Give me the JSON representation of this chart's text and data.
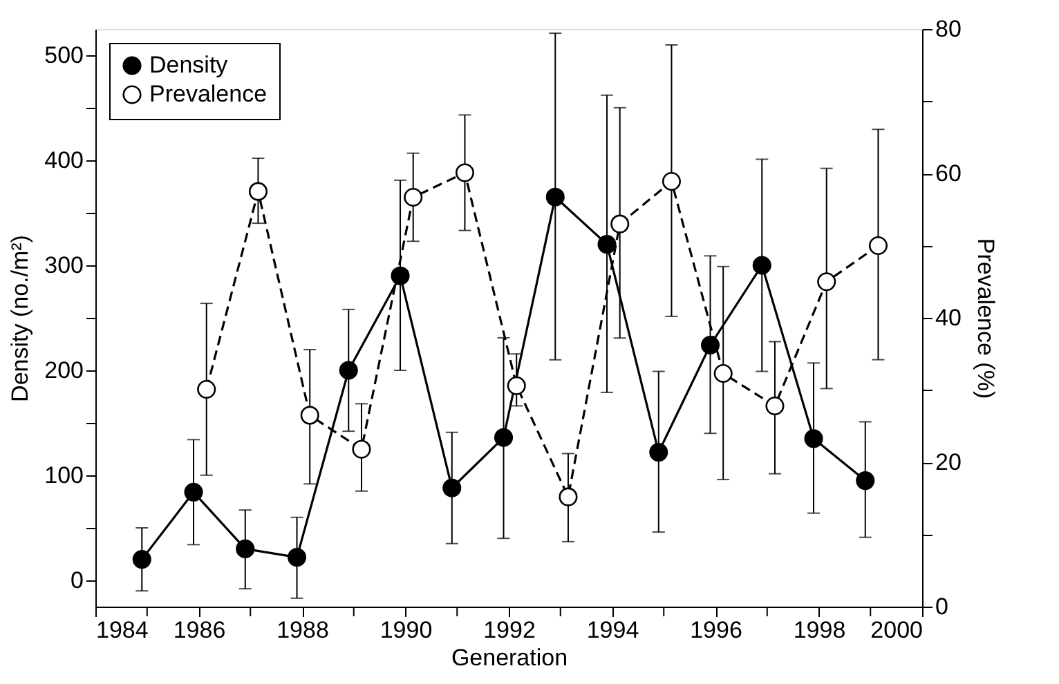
{
  "chart_data": {
    "type": "line",
    "xlabel": "Generation",
    "ylabel": "Density (no./m²)",
    "y2label": "Prevalence (%)",
    "xlim": [
      1984,
      2000
    ],
    "xticks": [
      1984,
      {
        "value": 1985,
        "label": null
      },
      1986,
      {
        "value": 1987,
        "label": null
      },
      1988,
      {
        "value": 1989,
        "label": null
      },
      1990,
      {
        "value": 1991,
        "label": null
      },
      1992,
      {
        "value": 1993,
        "label": null
      },
      1994,
      {
        "value": 1995,
        "label": null
      },
      1996,
      {
        "value": 1997,
        "label": null
      },
      1998,
      {
        "value": 1999,
        "label": null
      },
      2000
    ],
    "ylim": [
      -25,
      525
    ],
    "yticks": [
      0,
      {
        "value": 50,
        "label": null
      },
      100,
      {
        "value": 150,
        "label": null
      },
      200,
      {
        "value": 250,
        "label": null
      },
      300,
      {
        "value": 350,
        "label": null
      },
      400,
      {
        "value": 450,
        "label": null
      },
      500
    ],
    "y2lim": [
      0,
      80
    ],
    "y2ticks": [
      0,
      {
        "value": 10,
        "label": null
      },
      20,
      {
        "value": 30,
        "label": null
      },
      40,
      {
        "value": 50,
        "label": null
      },
      60,
      {
        "value": 70,
        "label": null
      },
      80
    ],
    "grid": false,
    "legend": "top left",
    "marker": "circle",
    "series": [
      {
        "name": "Density",
        "color": "#000000",
        "line_style": "solid",
        "x": [
          1984.9,
          1985.9,
          1986.9,
          1987.9,
          1988.9,
          1989.9,
          1990.9,
          1991.9,
          1992.9,
          1993.9,
          1994.9,
          1995.9,
          1996.9,
          1997.9,
          1998.9
        ],
        "values": [
          20,
          84,
          30,
          22,
          200,
          290,
          88,
          136,
          365,
          320,
          122,
          224,
          300,
          135,
          95
        ],
        "errors": [
          [
            -10,
            50
          ],
          [
            34,
            134
          ],
          [
            -8,
            67
          ],
          [
            -17,
            60
          ],
          [
            142,
            258
          ],
          [
            200,
            381
          ],
          [
            35,
            141
          ],
          [
            40,
            231
          ],
          [
            210,
            521
          ],
          [
            179,
            462
          ],
          [
            46,
            199
          ],
          [
            140,
            309
          ],
          [
            199,
            401
          ],
          [
            64,
            207
          ],
          [
            41,
            151
          ]
        ]
      },
      {
        "name": "Prevalence",
        "color": "#000000",
        "line_style": "dashed",
        "axis": "y2",
        "x": [
          1986.15,
          1987.15,
          1988.15,
          1989.15,
          1990.15,
          1991.15,
          1992.15,
          1993.15,
          1994.15,
          1995.15,
          1996.15,
          1997.15,
          1998.15,
          1999.15
        ],
        "values": [
          30.1,
          57.5,
          26.5,
          21.8,
          56.7,
          60.1,
          30.6,
          15.2,
          53.0,
          58.9,
          32.3,
          27.8,
          45.0,
          50.0
        ],
        "errors": [
          [
            18.2,
            42.0
          ],
          [
            53.1,
            62.1
          ],
          [
            17.0,
            35.6
          ],
          [
            16.0,
            28.1
          ],
          [
            50.6,
            62.8
          ],
          [
            52.1,
            68.1
          ],
          [
            27.8,
            35.0
          ],
          [
            9.0,
            21.2
          ],
          [
            37.2,
            69.1
          ],
          [
            40.2,
            77.8
          ],
          [
            17.6,
            47.1
          ],
          [
            18.4,
            36.7
          ],
          [
            30.2,
            60.7
          ],
          [
            34.2,
            66.1
          ]
        ]
      }
    ]
  }
}
